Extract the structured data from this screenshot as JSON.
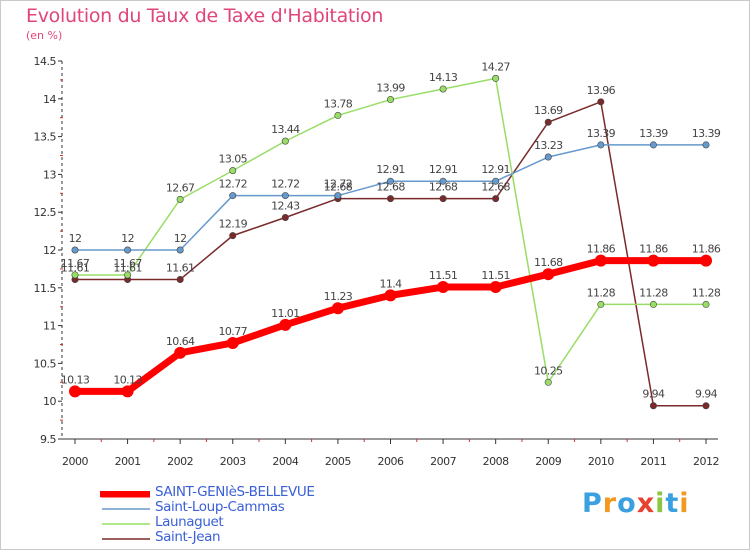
{
  "title": "Evolution du Taux de Taxe d'Habitation",
  "subtitle": "(en %)",
  "logo": {
    "text": "Proxiti",
    "colors": [
      "#3aa0e0",
      "#f29a1f",
      "#3aa0e0",
      "#e8412f",
      "#8cc63e",
      "#3aa0e0",
      "#f29a1f"
    ]
  },
  "chart_data": {
    "type": "line",
    "x": [
      "2000",
      "2001",
      "2002",
      "2003",
      "2004",
      "2005",
      "2006",
      "2007",
      "2008",
      "2009",
      "2010",
      "2011",
      "2012"
    ],
    "ylim": [
      9.5,
      14.5
    ],
    "yticks": [
      "9.5",
      "10",
      "10.5",
      "11",
      "11.5",
      "12",
      "12.5",
      "13",
      "13.5",
      "14",
      "14.5"
    ],
    "grid": false,
    "legend_position": "bottom",
    "series": [
      {
        "name": "SAINT-GENIèS-BELLEVUE",
        "color": "#ff0000",
        "width": 7,
        "values": [
          10.13,
          10.13,
          10.64,
          10.77,
          11.01,
          11.23,
          11.4,
          11.51,
          11.51,
          11.68,
          11.86,
          11.86,
          11.86
        ],
        "labels": [
          "10.13",
          "10.13",
          "10.64",
          "10.77",
          "11.01",
          "11.23",
          "11.4",
          "11.51",
          "11.51",
          "11.68",
          "11.86",
          "11.86",
          "11.86"
        ]
      },
      {
        "name": "Saint-Loup-Cammas",
        "color": "#6699cc",
        "width": 1.5,
        "values": [
          12,
          12,
          12,
          12.72,
          12.72,
          12.72,
          12.91,
          12.91,
          12.91,
          13.23,
          13.39,
          13.39,
          13.39
        ],
        "labels": [
          "12",
          "12",
          "12",
          "12.72",
          "12.72",
          "12.72",
          "12.91",
          "12.91",
          "12.91",
          "13.23",
          "13.39",
          "13.39",
          "13.39"
        ]
      },
      {
        "name": "Launaguet",
        "color": "#99dd66",
        "width": 1.5,
        "values": [
          11.67,
          11.67,
          12.67,
          13.05,
          13.44,
          13.78,
          13.99,
          14.13,
          14.27,
          10.25,
          11.28,
          11.28,
          11.28
        ],
        "labels": [
          "11.67",
          "11.67",
          "12.67",
          "13.05",
          "13.44",
          "13.78",
          "13.99",
          "14.13",
          "14.27",
          "10.25",
          "11.28",
          "11.28",
          "11.28"
        ]
      },
      {
        "name": "Saint-Jean",
        "color": "#7a2a2a",
        "width": 1.5,
        "values": [
          11.61,
          11.61,
          11.61,
          12.19,
          12.43,
          12.68,
          12.68,
          12.68,
          12.68,
          13.69,
          13.96,
          9.94,
          9.94
        ],
        "labels": [
          "11.61",
          "11.61",
          "11.61",
          "12.19",
          "12.43",
          "12.68",
          "12.68",
          "12.68",
          "12.68",
          "13.69",
          "13.96",
          "9.94",
          "9.94"
        ]
      }
    ]
  }
}
